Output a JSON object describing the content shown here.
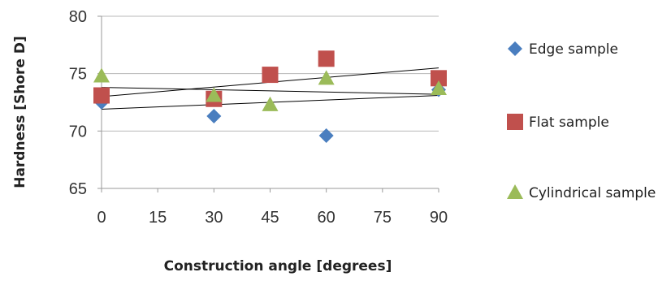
{
  "chart_data": {
    "type": "scatter",
    "xlabel": "Construction angle [degrees]",
    "ylabel": "Hardness [Shore D]",
    "xlim": [
      0,
      90
    ],
    "ylim": [
      65,
      80
    ],
    "xticks": [
      "0",
      "15",
      "30",
      "45",
      "60",
      "75",
      "90"
    ],
    "yticks": [
      "65",
      "70",
      "75",
      "80"
    ],
    "grid": "horizontal",
    "legend_position": "right",
    "trendlines": true,
    "series": [
      {
        "name": "Edge sample",
        "marker": "diamond",
        "color": "#4a7ebf",
        "x": [
          0,
          30,
          60,
          90
        ],
        "y": [
          72.5,
          71.3,
          69.6,
          73.6
        ],
        "trend": [
          73.8,
          73.2
        ]
      },
      {
        "name": "Flat sample",
        "marker": "square",
        "color": "#c0504d",
        "x": [
          0,
          30,
          45,
          60,
          90
        ],
        "y": [
          73.1,
          72.8,
          74.9,
          76.3,
          74.6
        ],
        "trend": [
          73.0,
          75.5
        ]
      },
      {
        "name": "Cylindrical sample",
        "marker": "triangle",
        "color": "#9bbb59",
        "x": [
          0,
          30,
          45,
          60,
          90
        ],
        "y": [
          74.8,
          73.1,
          72.3,
          74.6,
          73.7
        ],
        "trend": [
          71.9,
          73.1
        ]
      }
    ]
  }
}
